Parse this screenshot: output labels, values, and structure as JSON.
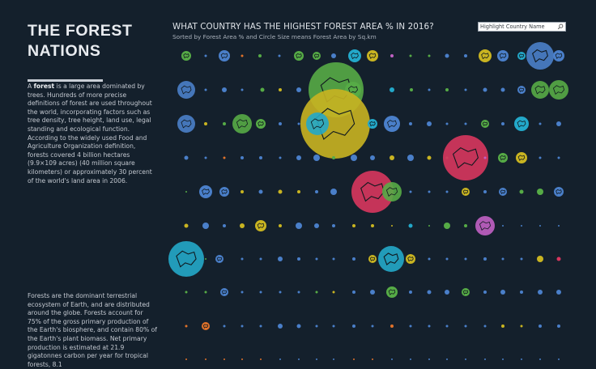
{
  "sidebar": {
    "title": "THE FOREST NATIONS",
    "p1_prefix": "A ",
    "p1_bold": "forest",
    "p1_rest": " is a large area dominated by trees. Hundreds of more precise definitions of forest are used throughout the world, incorporating factors such as tree density, tree height, land use, legal standing and ecological function. According to the widely used Food and Agriculture Organization definition, forests covered 4 billion hectares (9.9×109 acres) (40 million square kilometers) or approximately 30 percent of the world's land area in 2006.",
    "p2": "Forests are the dominant terrestrial ecosystem of Earth, and are distributed around the globe. Forests account for 75% of the gross primary production of the Earth's biosphere, and contain 80% of the Earth's plant biomass. Net primary production is estimated at 21.9 gigatonnes carbon per year for tropical forests, 8.1"
  },
  "header": {
    "title": "WHAT COUNTRY HAS THE HIGHEST FOREST AREA % IN 2016?",
    "subtitle": "Sorted by Forest Area % and Circle Size means Forest Area by Sq.km"
  },
  "search": {
    "placeholder": "Highlight Country Name",
    "icon": "search-icon"
  },
  "colors": {
    "background": "#14202c",
    "blue": "#4a7fc9",
    "green": "#56ab46",
    "yellow": "#c9b421",
    "red": "#d8365e",
    "cyan": "#23a8c9",
    "purple": "#c161c4",
    "orange": "#e0722a",
    "outline": "#10191f"
  }
}
